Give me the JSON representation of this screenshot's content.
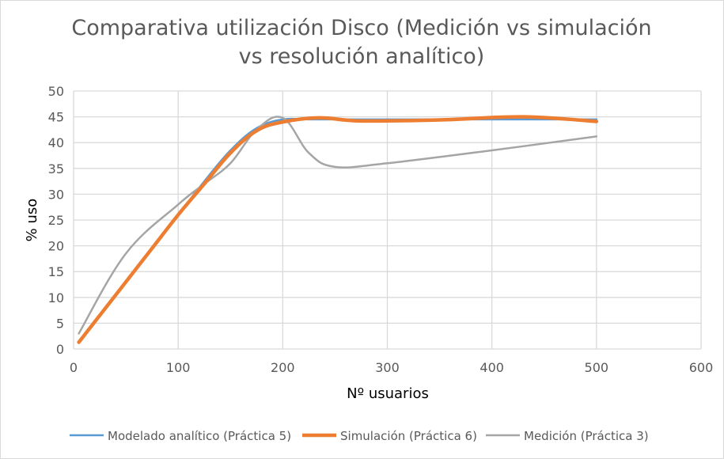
{
  "chart_data": {
    "type": "line",
    "title_line1": "Comparativa utilización Disco (Medición vs simulación",
    "title_line2": "vs resolución analítico)",
    "xlabel": "Nº usuarios",
    "ylabel": "% uso",
    "xlim": [
      0,
      600
    ],
    "ylim": [
      0,
      50
    ],
    "x_ticks": [
      "0",
      "100",
      "200",
      "300",
      "400",
      "500",
      "600"
    ],
    "y_ticks": [
      "0",
      "5",
      "10",
      "15",
      "20",
      "25",
      "30",
      "35",
      "40",
      "45",
      "50"
    ],
    "grid": true,
    "legend_position": "bottom",
    "series": [
      {
        "name": "Modelado analítico (Práctica 5)",
        "color": "#5b9bd5",
        "x": [
          5,
          25,
          50,
          75,
          100,
          125,
          150,
          175,
          200,
          225,
          250,
          300,
          400,
          500
        ],
        "y": [
          1.3,
          6.5,
          13,
          19.5,
          26,
          32.5,
          38.5,
          42.8,
          44.5,
          44.5,
          44.5,
          44.5,
          44.5,
          44.5
        ]
      },
      {
        "name": "Simulación (Práctica 6)",
        "color": "#ed7d31",
        "x": [
          5,
          25,
          50,
          75,
          100,
          125,
          150,
          175,
          200,
          235,
          275,
          350,
          430,
          500
        ],
        "y": [
          1.3,
          6.5,
          13,
          19.5,
          26,
          32,
          38,
          42.3,
          44,
          44.8,
          44.2,
          44.4,
          45,
          44.1
        ]
      },
      {
        "name": "Medición (Práctica 3)",
        "color": "#a5a5a5",
        "x": [
          5,
          50,
          100,
          125,
          150,
          175,
          200,
          225,
          250,
          300,
          400,
          500
        ],
        "y": [
          3,
          18.5,
          28,
          32,
          36,
          42.5,
          44.8,
          38,
          35.3,
          36,
          38.5,
          41.2
        ]
      }
    ]
  }
}
